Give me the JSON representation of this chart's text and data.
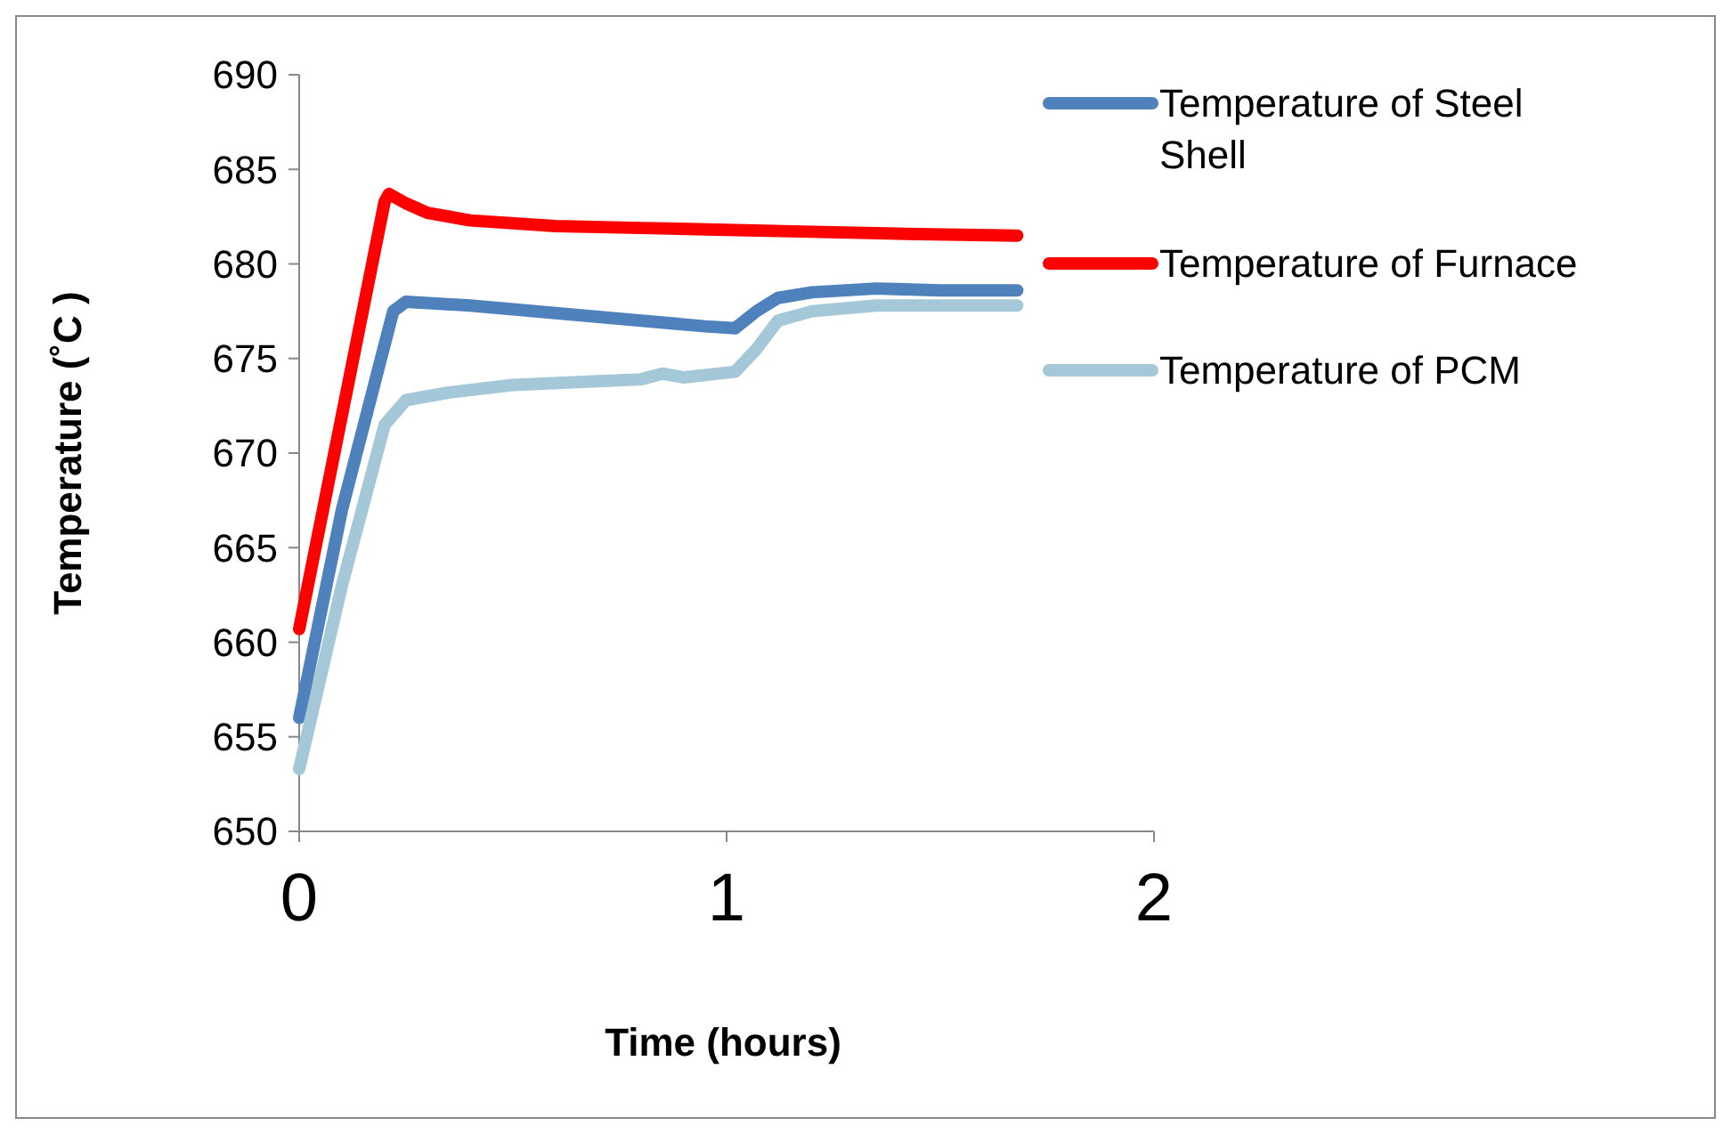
{
  "chart_data": {
    "type": "line",
    "xlabel": "Time (hours)",
    "ylabel": "Temperature (˚C )",
    "xlim": [
      0,
      2
    ],
    "xticks": [
      0,
      1,
      2
    ],
    "ylim": [
      650,
      690
    ],
    "yticks": [
      650,
      655,
      660,
      665,
      670,
      675,
      680,
      685,
      690
    ],
    "grid": false,
    "legend": "top right",
    "line_style": "solid",
    "series": [
      {
        "name": "Temperature of Steel Shell",
        "color": "#4f81bd",
        "x": [
          0,
          0.1,
          0.22,
          0.25,
          0.4,
          0.6,
          0.8,
          0.95,
          1.02,
          1.07,
          1.12,
          1.2,
          1.35,
          1.5,
          1.68
        ],
        "values": [
          656,
          667,
          677.5,
          678,
          677.8,
          677.4,
          677,
          676.7,
          676.6,
          677.5,
          678.2,
          678.5,
          678.7,
          678.6,
          678.6
        ]
      },
      {
        "name": "Temperature of Furnace",
        "color": "#ff0000",
        "x": [
          0,
          0.1,
          0.2,
          0.21,
          0.25,
          0.3,
          0.4,
          0.6,
          0.8,
          1,
          1.2,
          1.4,
          1.68
        ],
        "values": [
          660.7,
          672,
          683.3,
          683.7,
          683.2,
          682.7,
          682.3,
          682,
          681.9,
          681.8,
          681.7,
          681.6,
          681.5
        ]
      },
      {
        "name": "Temperature of PCM",
        "color": "#a5c8d8",
        "x": [
          0,
          0.1,
          0.2,
          0.25,
          0.35,
          0.5,
          0.7,
          0.8,
          0.85,
          0.9,
          1.02,
          1.07,
          1.12,
          1.2,
          1.35,
          1.68
        ],
        "values": [
          653.3,
          663,
          671.5,
          672.8,
          673.2,
          673.6,
          673.8,
          673.9,
          674.2,
          674,
          674.3,
          675.5,
          677,
          677.5,
          677.8,
          677.8
        ]
      }
    ]
  }
}
